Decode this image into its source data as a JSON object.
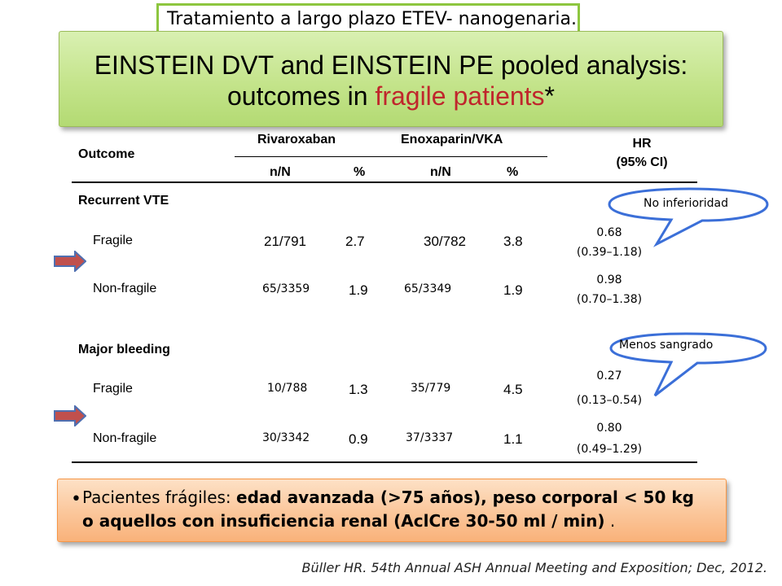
{
  "top_note": "Tratamiento a largo plazo ETEV- nanogenaria.",
  "title": {
    "line1": "EINSTEIN DVT and EINSTEIN PE pooled analysis:",
    "line2_prefix": "outcomes in ",
    "line2_accent": "fragile patients",
    "line2_suffix": "*"
  },
  "table": {
    "outcome_header": "Outcome",
    "group1": "Rivaroxaban",
    "group2": "Enoxaparin/VKA",
    "hr_header_line1": "HR",
    "hr_header_line2": "(95% CI)",
    "sub_nN_1": "n/N",
    "sub_pct_1": "%",
    "sub_nN_2": "n/N",
    "sub_pct_2": "%",
    "sections": [
      {
        "title": "Recurrent VTE",
        "rows": [
          {
            "label": "Fragile",
            "riva_nN": "21/791",
            "riva_pct": "2.7",
            "enox_nN": "30/782",
            "enox_pct": "3.8",
            "hr": "0.68",
            "ci": "(0.39–1.18)"
          },
          {
            "label": "Non-fragile",
            "riva_nN": "65/3359",
            "riva_pct": "1.9",
            "enox_nN": "65/3349",
            "enox_pct": "1.9",
            "hr": "0.98",
            "ci": "(0.70–1.38)"
          }
        ]
      },
      {
        "title": "Major bleeding",
        "rows": [
          {
            "label": "Fragile",
            "riva_nN": "10/788",
            "riva_pct": "1.3",
            "enox_nN": "35/779",
            "enox_pct": "4.5",
            "hr": "0.27",
            "ci": "(0.13–0.54)"
          },
          {
            "label": "Non-fragile",
            "riva_nN": "30/3342",
            "riva_pct": "0.9",
            "enox_nN": "37/3337",
            "enox_pct": "1.1",
            "hr": "0.80",
            "ci": "(0.49–1.29)"
          }
        ]
      }
    ]
  },
  "callouts": {
    "no_inferioridad": "No inferioridad",
    "menos_sangrado": "Menos sangrado"
  },
  "bullet": {
    "prefix": "Pacientes frágiles: ",
    "bold": "edad avanzada (>75 años), peso corporal < 50 kg o aquellos con insuficiencia renal (AclCre 30-50 ml / min)",
    "suffix": " ."
  },
  "citation": "Büller HR. 54th Annual ASH Annual Meeting and Exposition; Dec, 2012.",
  "colors": {
    "title_green": "#c4e48b",
    "accent_red": "#c0262c",
    "bullet_orange": "#fbc69a",
    "callout_blue": "#3b6fd8",
    "arrow_red": "#c0504d",
    "arrow_blue": "#4f6fb0"
  }
}
